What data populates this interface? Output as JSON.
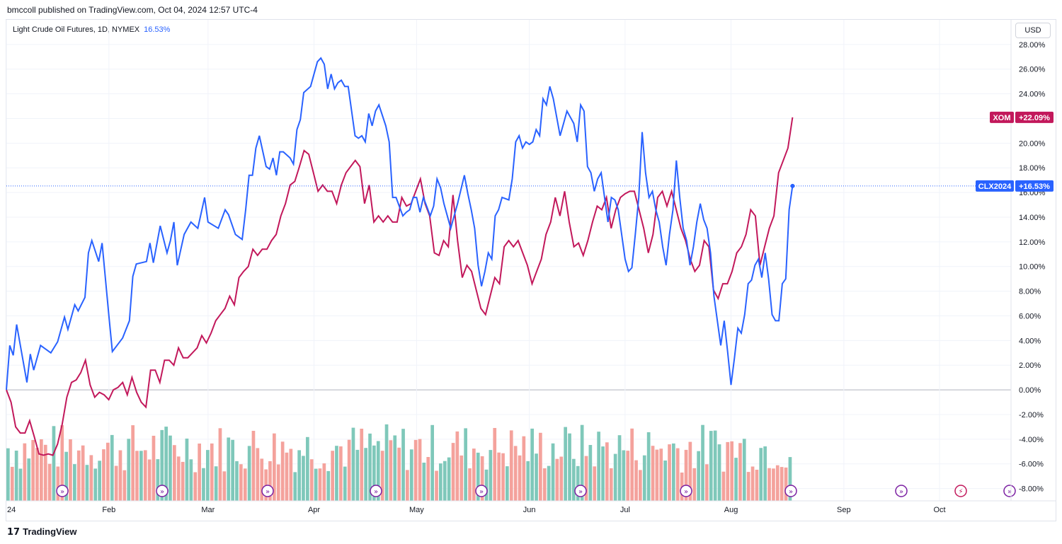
{
  "header": {
    "published": "bmccoll published on TradingView.com, Oct 04, 2024 12:57 UTC-4",
    "legend_name": "Light Crude Oil Futures, 1D, NYMEX",
    "legend_value": "16.53%",
    "currency": "USD"
  },
  "footer": {
    "logo_mark": "17",
    "brand": "TradingView"
  },
  "colors": {
    "clx": "#2962ff",
    "xom": "#c2185b",
    "vol_up": "#7fc8ba",
    "vol_down": "#f4a29c",
    "marker": "#7b1fa2",
    "marker_alt": "#c2185b"
  },
  "chart_data": {
    "type": "line",
    "y_axis": {
      "unit": "%",
      "ylim": [
        -9,
        30
      ],
      "ticks": [
        28,
        26,
        24,
        22,
        20,
        18,
        16,
        14,
        12,
        10,
        8,
        6,
        4,
        2,
        0,
        -2,
        -4,
        -6,
        -8
      ],
      "tick_labels": [
        "28.00%",
        "26.00%",
        "24.00%",
        "22.00%",
        "20.00%",
        "18.00%",
        "16.00%",
        "14.00%",
        "12.00%",
        "10.00%",
        "8.00%",
        "6.00%",
        "4.00%",
        "2.00%",
        "0.00%",
        "-2.00%",
        "-4.00%",
        "-6.00%",
        "-8.00%"
      ]
    },
    "x_axis": {
      "labels": [
        {
          "label": "24",
          "date": "2024-01-02"
        },
        {
          "label": "Feb",
          "date": "2024-02-01"
        },
        {
          "label": "Mar",
          "date": "2024-03-01"
        },
        {
          "label": "Apr",
          "date": "2024-04-01"
        },
        {
          "label": "May",
          "date": "2024-05-01"
        },
        {
          "label": "Jun",
          "date": "2024-06-03"
        },
        {
          "label": "Jul",
          "date": "2024-07-01"
        },
        {
          "label": "Aug",
          "date": "2024-08-01"
        },
        {
          "label": "Sep",
          "date": "2024-09-03"
        },
        {
          "label": "Oct",
          "date": "2024-10-01"
        }
      ]
    },
    "series": [
      {
        "name": "CLX2024",
        "last_label": "+16.53%",
        "last_value": 16.53,
        "points": [
          [
            "2024-01-02",
            0
          ],
          [
            "2024-01-03",
            3.6
          ],
          [
            "2024-01-04",
            2.8
          ],
          [
            "2024-01-05",
            5.3
          ],
          [
            "2024-01-08",
            0.6
          ],
          [
            "2024-01-09",
            2.9
          ],
          [
            "2024-01-10",
            1.6
          ],
          [
            "2024-01-12",
            3.6
          ],
          [
            "2024-01-15",
            3.0
          ],
          [
            "2024-01-17",
            3.9
          ],
          [
            "2024-01-19",
            5.9
          ],
          [
            "2024-01-20",
            4.9
          ],
          [
            "2024-01-22",
            6.9
          ],
          [
            "2024-01-23",
            6.4
          ],
          [
            "2024-01-25",
            7.5
          ],
          [
            "2024-01-26",
            11.1
          ],
          [
            "2024-01-27",
            12.1
          ],
          [
            "2024-01-29",
            10.4
          ],
          [
            "2024-01-30",
            11.9
          ],
          [
            "2024-02-01",
            6.0
          ],
          [
            "2024-02-02",
            3.1
          ],
          [
            "2024-02-05",
            4.2
          ],
          [
            "2024-02-07",
            5.6
          ],
          [
            "2024-02-08",
            9.2
          ],
          [
            "2024-02-09",
            10.2
          ],
          [
            "2024-02-12",
            10.4
          ],
          [
            "2024-02-13",
            11.9
          ],
          [
            "2024-02-14",
            10.3
          ],
          [
            "2024-02-16",
            13.3
          ],
          [
            "2024-02-18",
            11.1
          ],
          [
            "2024-02-19",
            12.1
          ],
          [
            "2024-02-20",
            13.6
          ],
          [
            "2024-02-21",
            10.1
          ],
          [
            "2024-02-23",
            12.6
          ],
          [
            "2024-02-25",
            13.6
          ],
          [
            "2024-02-27",
            13.1
          ],
          [
            "2024-02-29",
            15.6
          ],
          [
            "2024-03-01",
            13.6
          ],
          [
            "2024-03-04",
            13.1
          ],
          [
            "2024-03-06",
            14.6
          ],
          [
            "2024-03-07",
            14.2
          ],
          [
            "2024-03-09",
            12.6
          ],
          [
            "2024-03-10",
            12.4
          ],
          [
            "2024-03-11",
            12.2
          ],
          [
            "2024-03-12",
            14.6
          ],
          [
            "2024-03-13",
            17.4
          ],
          [
            "2024-03-14",
            17.4
          ],
          [
            "2024-03-15",
            19.6
          ],
          [
            "2024-03-16",
            20.6
          ],
          [
            "2024-03-18",
            18.1
          ],
          [
            "2024-03-19",
            17.9
          ],
          [
            "2024-03-20",
            18.8
          ],
          [
            "2024-03-21",
            17.4
          ],
          [
            "2024-03-22",
            19.3
          ],
          [
            "2024-03-23",
            19.3
          ],
          [
            "2024-03-25",
            18.8
          ],
          [
            "2024-03-26",
            18.3
          ],
          [
            "2024-03-27",
            21.1
          ],
          [
            "2024-03-28",
            21.9
          ],
          [
            "2024-03-29",
            24.1
          ],
          [
            "2024-03-31",
            24.6
          ],
          [
            "2024-04-01",
            25.6
          ],
          [
            "2024-04-02",
            26.6
          ],
          [
            "2024-04-03",
            26.9
          ],
          [
            "2024-04-04",
            26.4
          ],
          [
            "2024-04-05",
            24.4
          ],
          [
            "2024-04-06",
            25.6
          ],
          [
            "2024-04-07",
            24.4
          ],
          [
            "2024-04-08",
            24.9
          ],
          [
            "2024-04-09",
            25.1
          ],
          [
            "2024-04-10",
            24.6
          ],
          [
            "2024-04-11",
            24.6
          ],
          [
            "2024-04-13",
            20.6
          ],
          [
            "2024-04-14",
            20.4
          ],
          [
            "2024-04-15",
            20.6
          ],
          [
            "2024-04-16",
            20.1
          ],
          [
            "2024-04-17",
            22.4
          ],
          [
            "2024-04-18",
            21.4
          ],
          [
            "2024-04-19",
            22.6
          ],
          [
            "2024-04-20",
            23.1
          ],
          [
            "2024-04-22",
            21.4
          ],
          [
            "2024-04-23",
            20.1
          ],
          [
            "2024-04-24",
            15.6
          ],
          [
            "2024-04-25",
            15.6
          ],
          [
            "2024-04-27",
            14.1
          ],
          [
            "2024-04-28",
            14.4
          ],
          [
            "2024-04-29",
            14.6
          ],
          [
            "2024-04-30",
            15.6
          ],
          [
            "2024-05-01",
            15.6
          ],
          [
            "2024-05-02",
            14.4
          ],
          [
            "2024-05-03",
            15.6
          ],
          [
            "2024-05-05",
            14.1
          ],
          [
            "2024-05-06",
            14.9
          ],
          [
            "2024-05-07",
            17.1
          ],
          [
            "2024-05-08",
            16.4
          ],
          [
            "2024-05-09",
            15.1
          ],
          [
            "2024-05-10",
            14.1
          ],
          [
            "2024-05-11",
            13.1
          ],
          [
            "2024-05-13",
            15.1
          ],
          [
            "2024-05-15",
            17.4
          ],
          [
            "2024-05-16",
            15.9
          ],
          [
            "2024-05-17",
            14.6
          ],
          [
            "2024-05-18",
            13.1
          ],
          [
            "2024-05-19",
            10.1
          ],
          [
            "2024-05-20",
            8.4
          ],
          [
            "2024-05-21",
            9.6
          ],
          [
            "2024-05-22",
            11.1
          ],
          [
            "2024-05-23",
            10.6
          ],
          [
            "2024-05-24",
            14.1
          ],
          [
            "2024-05-25",
            14.6
          ],
          [
            "2024-05-26",
            15.6
          ],
          [
            "2024-05-28",
            15.4
          ],
          [
            "2024-05-29",
            17.1
          ],
          [
            "2024-05-30",
            20.1
          ],
          [
            "2024-05-31",
            20.6
          ],
          [
            "2024-06-01",
            19.6
          ],
          [
            "2024-06-02",
            20.1
          ],
          [
            "2024-06-03",
            19.9
          ],
          [
            "2024-06-04",
            20.1
          ],
          [
            "2024-06-05",
            21.1
          ],
          [
            "2024-06-06",
            20.6
          ],
          [
            "2024-06-07",
            23.6
          ],
          [
            "2024-06-08",
            23.1
          ],
          [
            "2024-06-09",
            24.6
          ],
          [
            "2024-06-10",
            23.6
          ],
          [
            "2024-06-11",
            22.1
          ],
          [
            "2024-06-12",
            20.6
          ],
          [
            "2024-06-13",
            21.6
          ],
          [
            "2024-06-14",
            22.6
          ],
          [
            "2024-06-15",
            22.1
          ],
          [
            "2024-06-16",
            21.6
          ],
          [
            "2024-06-17",
            20.1
          ],
          [
            "2024-06-18",
            23.1
          ],
          [
            "2024-06-19",
            22.6
          ],
          [
            "2024-06-20",
            18.1
          ],
          [
            "2024-06-21",
            17.6
          ],
          [
            "2024-06-22",
            16.1
          ],
          [
            "2024-06-23",
            17.1
          ],
          [
            "2024-06-24",
            17.6
          ],
          [
            "2024-06-25",
            15.6
          ],
          [
            "2024-06-26",
            13.6
          ],
          [
            "2024-06-27",
            15.6
          ],
          [
            "2024-06-28",
            15.4
          ],
          [
            "2024-06-29",
            14.6
          ],
          [
            "2024-07-01",
            10.6
          ],
          [
            "2024-07-02",
            9.6
          ],
          [
            "2024-07-03",
            9.9
          ],
          [
            "2024-07-04",
            12.6
          ],
          [
            "2024-07-05",
            15.6
          ],
          [
            "2024-07-06",
            20.9
          ],
          [
            "2024-07-07",
            17.6
          ],
          [
            "2024-07-08",
            15.6
          ],
          [
            "2024-07-09",
            16.1
          ],
          [
            "2024-07-10",
            14.6
          ],
          [
            "2024-07-11",
            13.6
          ],
          [
            "2024-07-12",
            11.6
          ],
          [
            "2024-07-13",
            10.1
          ],
          [
            "2024-07-14",
            12.6
          ],
          [
            "2024-07-15",
            14.6
          ],
          [
            "2024-07-16",
            18.6
          ],
          [
            "2024-07-17",
            15.6
          ],
          [
            "2024-07-18",
            13.1
          ],
          [
            "2024-07-19",
            12.1
          ],
          [
            "2024-07-20",
            10.1
          ],
          [
            "2024-07-21",
            11.6
          ],
          [
            "2024-07-22",
            13.6
          ],
          [
            "2024-07-23",
            15.1
          ],
          [
            "2024-07-24",
            13.8
          ],
          [
            "2024-07-25",
            13.1
          ],
          [
            "2024-07-26",
            11.1
          ],
          [
            "2024-07-27",
            7.6
          ],
          [
            "2024-07-28",
            5.6
          ],
          [
            "2024-07-29",
            3.6
          ],
          [
            "2024-07-30",
            5.6
          ],
          [
            "2024-07-31",
            3.1
          ],
          [
            "2024-08-01",
            0.4
          ],
          [
            "2024-08-02",
            2.6
          ],
          [
            "2024-08-03",
            5.0
          ],
          [
            "2024-08-04",
            4.6
          ],
          [
            "2024-08-05",
            6.1
          ],
          [
            "2024-08-06",
            8.6
          ],
          [
            "2024-08-07",
            8.9
          ],
          [
            "2024-08-08",
            10.1
          ],
          [
            "2024-08-09",
            10.6
          ],
          [
            "2024-08-10",
            9.1
          ],
          [
            "2024-08-11",
            11.1
          ],
          [
            "2024-08-12",
            9.0
          ],
          [
            "2024-08-13",
            6.1
          ],
          [
            "2024-08-14",
            5.6
          ],
          [
            "2024-08-15",
            5.6
          ],
          [
            "2024-08-16",
            8.6
          ],
          [
            "2024-08-17",
            9.0
          ],
          [
            "2024-08-18",
            14.6
          ],
          [
            "2024-08-19",
            16.53
          ]
        ]
      },
      {
        "name": "XOM",
        "last_label": "+22.09%",
        "last_value": 22.09,
        "points": []
      }
    ],
    "volume_bars": true,
    "event_markers": 11
  }
}
